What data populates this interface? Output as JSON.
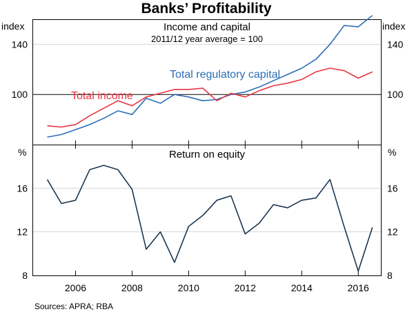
{
  "chart_title": "Banks’ Profitability",
  "source": "Sources: APRA; RBA",
  "colors": {
    "blue": "#2a6db5",
    "red": "#e8343f",
    "navy": "#1a3550",
    "grid": "#d4d4d4"
  },
  "x_ticks": [
    "2006",
    "2008",
    "2010",
    "2012",
    "2014",
    "2016"
  ],
  "chart_data": [
    {
      "type": "line",
      "title": "Income and capital",
      "subtitle": "2011/12 year average = 100",
      "ylabel_left": "index",
      "ylabel_right": "index",
      "ylim": [
        60,
        160
      ],
      "yticks": [
        100,
        140
      ],
      "reference_line": 100,
      "x": [
        2005,
        2005.5,
        2006,
        2006.5,
        2007,
        2007.5,
        2008,
        2008.5,
        2009,
        2009.5,
        2010,
        2010.5,
        2011,
        2011.5,
        2012,
        2012.5,
        2013,
        2013.5,
        2014,
        2014.5,
        2015,
        2015.5,
        2016,
        2016.5
      ],
      "series": [
        {
          "name": "Total regulatory capital",
          "color": "#2a6db5",
          "values": [
            66,
            68,
            72,
            76,
            81,
            87,
            84,
            97,
            93,
            100,
            98,
            95,
            96,
            100,
            102,
            106,
            111,
            116,
            121,
            128,
            140,
            155,
            154,
            163
          ]
        },
        {
          "name": "Total income",
          "color": "#e8343f",
          "values": [
            75,
            74,
            76,
            83,
            89,
            95,
            91,
            98,
            101,
            104,
            104,
            105,
            95,
            101,
            98,
            103,
            107,
            109,
            112,
            118,
            121,
            119,
            113,
            118
          ]
        }
      ]
    },
    {
      "type": "line",
      "title": "Return on equity",
      "ylabel_left": "%",
      "ylabel_right": "%",
      "ylim": [
        8,
        20
      ],
      "yticks": [
        8,
        12,
        16
      ],
      "x": [
        2005,
        2005.5,
        2006,
        2006.5,
        2007,
        2007.5,
        2008,
        2008.5,
        2009,
        2009.5,
        2010,
        2010.5,
        2011,
        2011.5,
        2012,
        2012.5,
        2013,
        2013.5,
        2014,
        2014.5,
        2015,
        2015.5,
        2016,
        2016.5
      ],
      "series": [
        {
          "name": "Return on equity",
          "color": "#1a3550",
          "values": [
            16.8,
            14.6,
            14.9,
            17.7,
            18.1,
            17.7,
            15.9,
            10.4,
            12.0,
            9.2,
            12.5,
            13.5,
            14.9,
            15.3,
            11.8,
            12.8,
            14.5,
            14.2,
            14.9,
            15.1,
            16.8,
            12.5,
            8.4,
            12.4
          ]
        }
      ]
    }
  ]
}
